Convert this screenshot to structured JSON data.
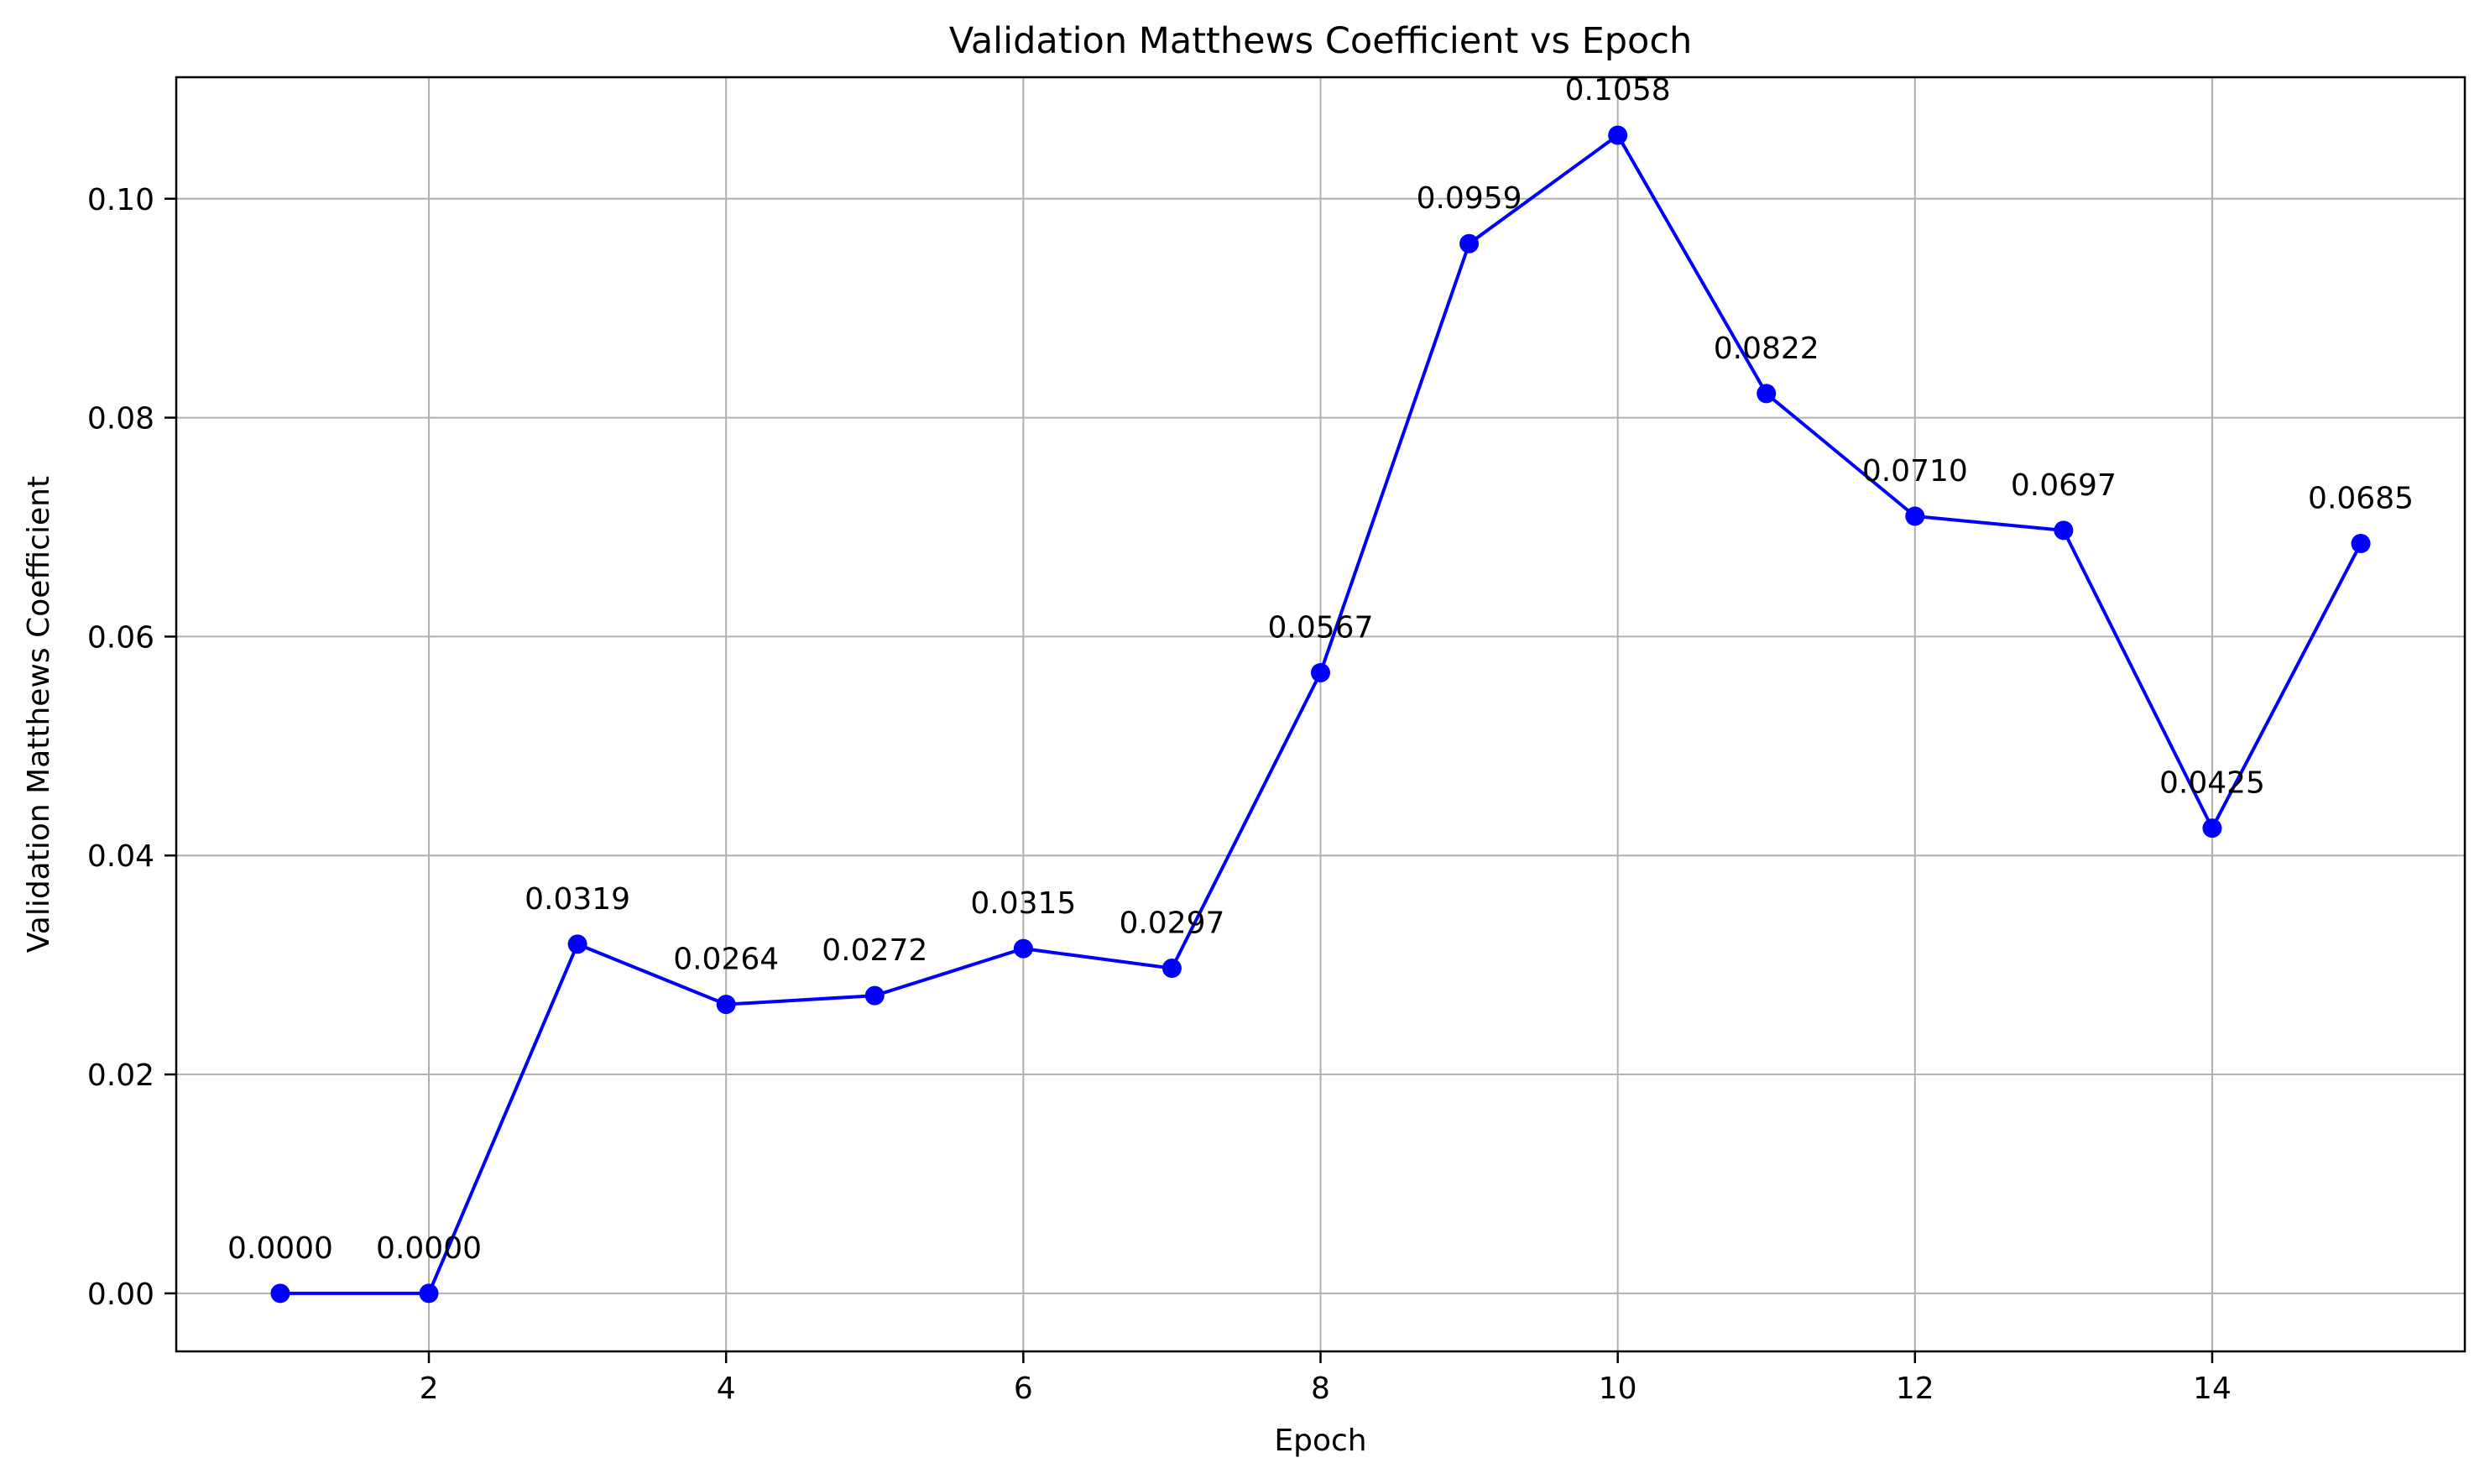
{
  "chart_data": {
    "type": "line",
    "title": "Validation Matthews Coefficient vs Epoch",
    "xlabel": "Epoch",
    "ylabel": "Validation Matthews Coefficient",
    "x": [
      1,
      2,
      3,
      4,
      5,
      6,
      7,
      8,
      9,
      10,
      11,
      12,
      13,
      14,
      15
    ],
    "series": [
      {
        "values": [
          0.0,
          0.0,
          0.0319,
          0.0264,
          0.0272,
          0.0315,
          0.0297,
          0.0567,
          0.0959,
          0.1058,
          0.0822,
          0.071,
          0.0697,
          0.0425,
          0.0685
        ],
        "labels": [
          "0.0000",
          "0.0000",
          "0.0319",
          "0.0264",
          "0.0272",
          "0.0315",
          "0.0297",
          "0.0567",
          "0.0959",
          "0.1058",
          "0.0822",
          "0.0710",
          "0.0697",
          "0.0425",
          "0.0685"
        ],
        "color": "#0000ff",
        "marker": "circle"
      }
    ],
    "xlim": [
      0.3,
      15.7
    ],
    "ylim": [
      -0.0053,
      0.1111
    ],
    "xticks": [
      2,
      4,
      6,
      8,
      10,
      12,
      14
    ],
    "xtick_labels": [
      "2",
      "4",
      "6",
      "8",
      "10",
      "12",
      "14"
    ],
    "yticks": [
      0.0,
      0.02,
      0.04,
      0.06,
      0.08,
      0.1
    ],
    "ytick_labels": [
      "0.00",
      "0.02",
      "0.04",
      "0.06",
      "0.08",
      "0.10"
    ],
    "grid": true,
    "legend": "none"
  }
}
